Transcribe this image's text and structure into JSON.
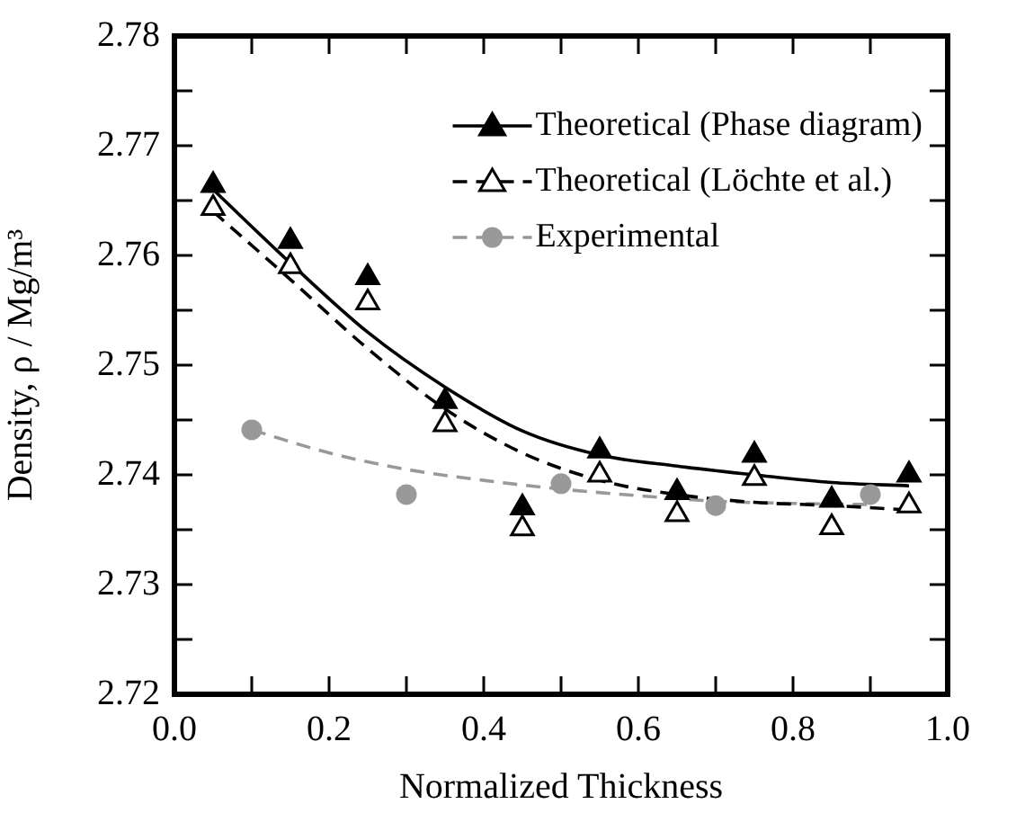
{
  "chart_data": {
    "type": "scatter",
    "xlabel": "Normalized Thickness",
    "ylabel": "Density, ρ / Mg/m³",
    "xlim": [
      0,
      1
    ],
    "ylim": [
      2.72,
      2.78
    ],
    "xticks": [
      {
        "value": 0,
        "label": "0.0"
      },
      {
        "value": 0.1,
        "label": null
      },
      {
        "value": 0.2,
        "label": "0.2"
      },
      {
        "value": 0.3,
        "label": null
      },
      {
        "value": 0.4,
        "label": "0.4"
      },
      {
        "value": 0.5,
        "label": null
      },
      {
        "value": 0.6,
        "label": "0.6"
      },
      {
        "value": 0.7,
        "label": null
      },
      {
        "value": 0.8,
        "label": "0.8"
      },
      {
        "value": 0.9,
        "label": null
      },
      {
        "value": 1,
        "label": "1.0"
      }
    ],
    "yticks": [
      2.72,
      {
        "value": 2.725,
        "label": null
      },
      2.73,
      {
        "value": 2.735,
        "label": null
      },
      2.74,
      {
        "value": 2.745,
        "label": null
      },
      2.75,
      {
        "value": 2.755,
        "label": null
      },
      2.76,
      {
        "value": 2.765,
        "label": null
      },
      2.77,
      {
        "value": 2.775,
        "label": null
      },
      2.78
    ],
    "grid": false,
    "legend": "top right",
    "series": [
      {
        "name": "Theoretical (Phase diagram)",
        "marker": "triangle",
        "line_style": "solid",
        "color": "#000000",
        "x": [
          0.05,
          0.15,
          0.25,
          0.35,
          0.45,
          0.55,
          0.65,
          0.75,
          0.85,
          0.95
        ],
        "values": [
          2.7664,
          2.7613,
          2.758,
          2.7467,
          2.737,
          2.7422,
          2.7384,
          2.7418,
          2.7377,
          2.74
        ]
      },
      {
        "name": "Theoretical (Löchte et al.)",
        "marker": "triangle",
        "line_style": "dashed",
        "color": "#000000",
        "x": [
          0.05,
          0.15,
          0.25,
          0.35,
          0.45,
          0.55,
          0.65,
          0.75,
          0.85,
          0.95
        ],
        "values": [
          2.7643,
          2.759,
          2.7557,
          2.7446,
          2.7351,
          2.74,
          2.7364,
          2.7397,
          2.7352,
          2.7372
        ]
      },
      {
        "name": "Experimental",
        "marker": "circle",
        "line_style": "dashed",
        "color": "#999999",
        "x": [
          0.1,
          0.3,
          0.5,
          0.7,
          0.9
        ],
        "values": [
          2.7441,
          2.7382,
          2.7392,
          2.7372,
          2.7382
        ]
      },
      {
        "type": "line",
        "line_style": "solid",
        "color": "#000000",
        "x": [
          0.05,
          0.15,
          0.25,
          0.35,
          0.45,
          0.55,
          0.65,
          0.75,
          0.85,
          0.95
        ],
        "values": [
          2.766,
          2.7593,
          2.753,
          2.748,
          2.744,
          2.7418,
          2.7408,
          2.74,
          2.7393,
          2.739
        ]
      },
      {
        "type": "line",
        "line_style": "dashed",
        "color": "#000000",
        "x": [
          0.05,
          0.15,
          0.25,
          0.35,
          0.45,
          0.55,
          0.65,
          0.75,
          0.85,
          0.95
        ],
        "values": [
          2.764,
          2.7578,
          2.7515,
          2.746,
          2.742,
          2.7395,
          2.7382,
          2.7375,
          2.7372,
          2.7368
        ]
      },
      {
        "type": "line",
        "line_style": "dashed",
        "color": "#999999",
        "x": [
          0.1,
          0.2,
          0.3,
          0.4,
          0.5,
          0.6,
          0.7,
          0.8,
          0.9
        ],
        "values": [
          2.7441,
          2.742,
          2.7405,
          2.7395,
          2.7387,
          2.7381,
          2.7376,
          2.7374,
          2.7373
        ]
      }
    ]
  }
}
